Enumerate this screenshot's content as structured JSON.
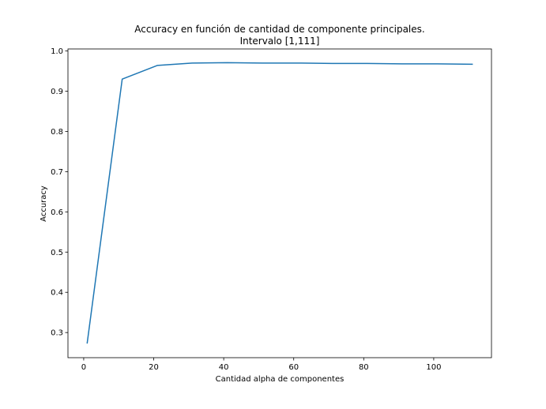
{
  "chart_data": {
    "type": "line",
    "title_line1": "Accuracy en función de cantidad de componente principales.",
    "title_line2": "Intervalo [1,111]",
    "xlabel": "Cantidad alpha de componentes",
    "ylabel": "Accuracy",
    "xlim": [
      -4.5,
      116.5
    ],
    "ylim": [
      0.2375,
      1.005
    ],
    "xticks": [
      0,
      20,
      40,
      60,
      80,
      100
    ],
    "yticks": [
      0.3,
      0.4,
      0.5,
      0.6,
      0.7,
      0.8,
      0.9,
      1.0
    ],
    "ytick_labels": [
      "0.3",
      "0.4",
      "0.5",
      "0.6",
      "0.7",
      "0.8",
      "0.9",
      "1.0"
    ],
    "grid": false,
    "series": [
      {
        "color": "#1f77b4",
        "x": [
          1,
          11,
          21,
          31,
          41,
          51,
          61,
          71,
          81,
          91,
          101,
          111
        ],
        "y": [
          0.274,
          0.93,
          0.964,
          0.97,
          0.971,
          0.97,
          0.97,
          0.969,
          0.969,
          0.968,
          0.968,
          0.967
        ]
      }
    ]
  }
}
